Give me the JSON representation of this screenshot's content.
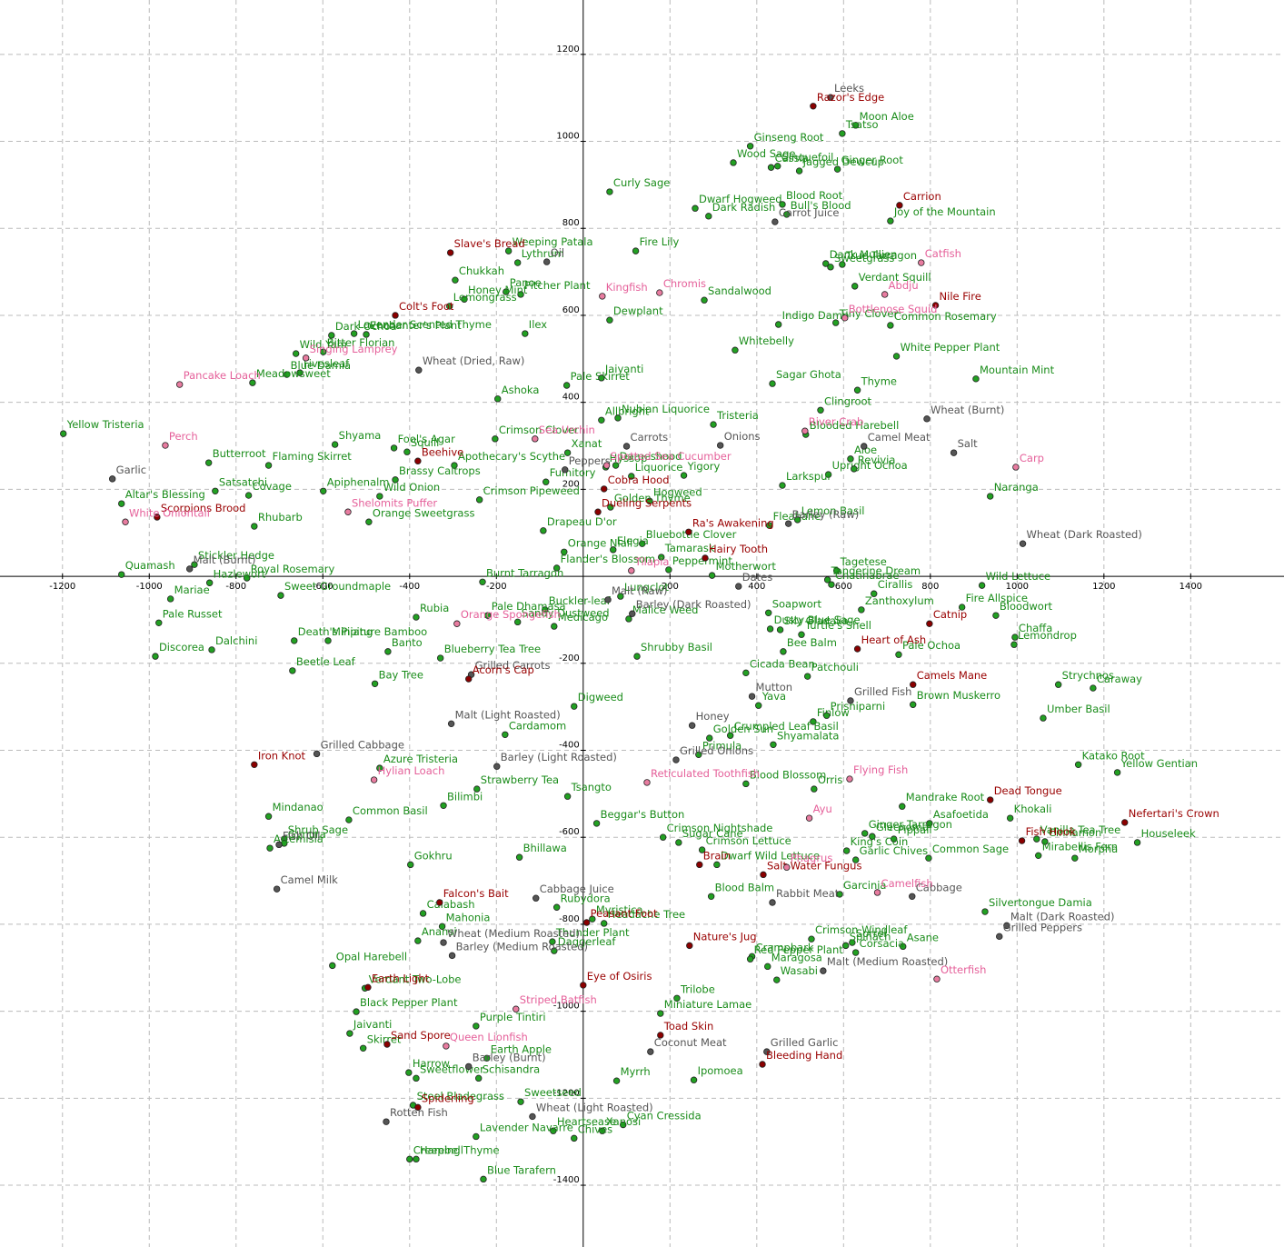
{
  "chart_data": {
    "type": "scatter",
    "xlim": [
      -1344,
      1615
    ],
    "ylim": [
      -1542,
      1325
    ],
    "xticks": [
      -1200,
      -1000,
      -800,
      -600,
      -400,
      -200,
      200,
      400,
      600,
      800,
      1000,
      1200,
      1400
    ],
    "yticks": [
      1200,
      1000,
      800,
      600,
      400,
      200,
      -200,
      -400,
      -600,
      -800,
      -1000,
      -1200,
      -1400
    ],
    "grid": true,
    "series": [
      {
        "color": "#22a022",
        "text_color": "#1a8c1a",
        "labels": [
          "Moon Aloe",
          "Tsatso",
          "Ginseng Root",
          "Wood Sage",
          "Cinquefoil",
          "Cassia",
          "Ginger Root",
          "Jagged Dewcup",
          "Curly Sage",
          "Dwarf Hogweed",
          "Blood Root",
          "Dark Radish",
          "Bull's Blood",
          "Joy of the Mountain",
          "Weeping Patala",
          "Lythrum",
          "Fire Lily",
          "Dank Mullien",
          "True Tarragon",
          "Sweetgrass",
          "Chukkah",
          "Panoe",
          "Pitcher Plant",
          "Verdant Squill",
          "Sandalwood",
          "Honey Mint",
          "Lemongrass",
          "Dewplant",
          "Indigo Damp",
          "Tiny Clover",
          "Common Rosemary",
          "Dark Ochoa",
          "Lavender Scented Thyme",
          "Enchanter's Plant",
          "Ilex",
          "Whitebelly",
          "Bitter Florian",
          "Wild Yam",
          "White Pepper Plant",
          "Blue Damia",
          "Fivesleaf",
          "Meadowsweet",
          "Mountain Mint",
          "Pale Skirret",
          "Jaiyanti",
          "Sagar Ghota",
          "Thyme",
          "Ashoka",
          "Clingroot",
          "Allbright",
          "Nubian Liquorice",
          "Tristeria",
          "Yellow Tristeria",
          "Crimson Clover",
          "Blooded Harebell",
          "Shyama",
          "Fool's Agar",
          "Xanat",
          "Butterroot",
          "Flaming Skirret",
          "Squill",
          "Apothecary's Scythe",
          "Aloe",
          "Dameshood",
          "Hyssop",
          "Liquorice",
          "Yigory",
          "Upright Ochoa",
          "Revivia",
          "Apiphenalm",
          "Brassy Caltrops",
          "Satsatchi",
          "Fumitory",
          "Crimson Pipeweed",
          "Larkspur",
          "Naranga",
          "Altar's Blessing",
          "Covage",
          "Wild Onion",
          "Golden Thyme",
          "Hogweed",
          "Orange Sweetgrass",
          "Fleabane",
          "Lemon Basil",
          "Rhubarb",
          "Drapeau D'or",
          "Bluebottle Clover",
          "Elegia",
          "Orange Niali",
          "Tamarask",
          "Stickler Hedge",
          "Flander's Blossom",
          "Peppermint",
          "Tagetese",
          "Royal Rosemary",
          "Quamash",
          "Burnt Tarragon",
          "Motherwort",
          "Tangerine Dream",
          "Wild Lettuce",
          "Hazlewort",
          "Lungclot",
          "Chatinabrae",
          "Sweet Groundmaple",
          "Mariae",
          "Buckler-leaf",
          "Zanthoxylum",
          "Fire Allspice",
          "Cirallis",
          "Bloodwort",
          "Rubia",
          "Pale Dhamasa",
          "Sandy Dustweed",
          "Soapwort",
          "Dusty Blue Sage",
          "Malice Weed",
          "Medicago",
          "Pale Russet",
          "Sky Gladalia",
          "Chaffa",
          "Lemondrop",
          "Miniature Bamboo",
          "Dalchini",
          "Death's Piping",
          "Turtle's Shell",
          "Shrubby Basil",
          "Bee Balm",
          "Pale Ochoa",
          "Blueberry Tea Tree",
          "Banto",
          "Discorea",
          "Beetle Leaf",
          "Patchouli",
          "Cicada Bean",
          "Strychnos",
          "Caraway",
          "Bay Tree",
          "Yava",
          "Digweed",
          "Brown Muskerro",
          "Umber Basil",
          "Finlow",
          "Prisniparni",
          "Cardamom",
          "Crumpled Leaf Basil",
          "Golden Sun",
          "Shyamalata",
          "Primula",
          "Katako Root",
          "Azure Tristeria",
          "Yellow Gentian",
          "Blood Blossom",
          "Orris",
          "Strawberry Tea",
          "Tsangto",
          "Mandrake Root",
          "Bilimbi",
          "Khokali",
          "Mindanao",
          "Asafoetida",
          "Common Basil",
          "Beggar's Button",
          "Ginger Tarragon",
          "Glechoma",
          "Vanilla Tea Tree",
          "Cinnamon",
          "Houseleek",
          "Crimson Nightshade",
          "Pippali",
          "Shrub Sage",
          "Gynura",
          "Artemisia",
          "Sugar Cane",
          "Crimson Lettuce",
          "King's Coin",
          "Mirabellis Fern",
          "Common Sage",
          "Garlic Chives",
          "Gokhru",
          "Bhillawa",
          "Dwarf Wild Lettuce",
          "Morpha",
          "Garcinia",
          "Blood Balm",
          "Rubydora",
          "Silvertongue Damia",
          "Calabash",
          "Myristica",
          "Mahonia",
          "Headache Tree",
          "Anansi",
          "Crimson Windleaf",
          "Sorrel",
          "Thunder Plant",
          "Asane",
          "Spinach",
          "Crampbark",
          "Daggerleaf",
          "Corsacia",
          "Red Pepper Plant",
          "Opal Harebell",
          "Maragosa",
          "Wasabi",
          "Verdant Two-Lobe",
          "Black Pepper Plant",
          "Trilobe",
          "Miniature Lamae",
          "Purple Tintiri",
          "Jaivanti",
          "Skirret",
          "Earth Apple",
          "Harrow",
          "Schisandra",
          "Myrrh",
          "Ipomoea",
          "Sweetflower",
          "Sweetseed",
          "Steel Bladegrass",
          "Cyan Cressida",
          "Heartsease",
          "Xanosi",
          "Lavender Navarre",
          "Chives",
          "Creeping Thyme",
          "Harebell",
          "Blue Tarafern"
        ],
        "x": [
          628,
          597,
          385,
          346,
          448,
          433,
          586,
          498,
          61,
          258,
          459,
          289,
          469,
          708,
          -172,
          -151,
          121,
          559,
          597,
          570,
          -295,
          -178,
          -144,
          626,
          279,
          -274,
          -308,
          61,
          450,
          582,
          708,
          -580,
          -528,
          -500,
          -134,
          350,
          -599,
          -662,
          722,
          -683,
          -653,
          -762,
          905,
          -38,
          42,
          436,
          632,
          -197,
          547,
          42,
          80,
          300,
          -1198,
          -203,
          513,
          -572,
          -436,
          -36,
          -863,
          -725,
          -406,
          -297,
          616,
          75,
          52,
          111,
          232,
          565,
          624,
          -599,
          -433,
          -848,
          -86,
          -239,
          459,
          938,
          -1064,
          -771,
          -469,
          63,
          153,
          -494,
          429,
          494,
          -758,
          -92,
          136,
          69,
          -44,
          180,
          -896,
          -61,
          197,
          584,
          -775,
          -1064,
          -232,
          297,
          563,
          919,
          -861,
          86,
          572,
          -697,
          -951,
          -88,
          641,
          873,
          670,
          951,
          -385,
          -220,
          -151,
          427,
          431,
          105,
          -67,
          -978,
          454,
          995,
          993,
          -588,
          -856,
          -666,
          503,
          124,
          461,
          727,
          -329,
          -450,
          -986,
          -670,
          517,
          375,
          1095,
          1175,
          -480,
          404,
          -21,
          760,
          1060,
          530,
          561,
          -180,
          339,
          291,
          438,
          266,
          1141,
          -469,
          1231,
          375,
          532,
          -245,
          -36,
          735,
          -322,
          984,
          -725,
          798,
          -540,
          31,
          649,
          666,
          1045,
          1064,
          1277,
          184,
          716,
          -689,
          -689,
          -722,
          220,
          274,
          607,
          1049,
          796,
          628,
          -398,
          -147,
          308,
          1133,
          591,
          295,
          -61,
          926,
          -369,
          21,
          -325,
          48,
          -381,
          526,
          620,
          -71,
          737,
          605,
          389,
          -67,
          628,
          385,
          -578,
          425,
          446,
          -503,
          -523,
          216,
          178,
          -247,
          -538,
          -507,
          -222,
          -402,
          -241,
          77,
          255,
          -385,
          -144,
          -392,
          92,
          -69,
          44,
          -247,
          -21,
          -400,
          -385,
          -230
        ],
        "y": [
          1037,
          1018,
          989,
          951,
          943,
          940,
          936,
          932,
          884,
          846,
          855,
          828,
          832,
          817,
          748,
          721,
          748,
          719,
          717,
          711,
          681,
          654,
          648,
          667,
          635,
          637,
          621,
          589,
          579,
          583,
          577,
          554,
          558,
          556,
          558,
          520,
          516,
          512,
          506,
          464,
          468,
          445,
          454,
          439,
          456,
          443,
          428,
          408,
          382,
          359,
          364,
          349,
          328,
          316,
          326,
          303,
          295,
          284,
          261,
          255,
          286,
          255,
          270,
          255,
          251,
          230,
          232,
          234,
          247,
          196,
          222,
          196,
          217,
          176,
          209,
          184,
          167,
          186,
          184,
          159,
          173,
          125,
          117,
          130,
          115,
          105,
          75,
          61,
          56,
          44,
          27,
          19,
          15,
          13,
          -4,
          4,
          -13,
          2,
          -8,
          -21,
          -15,
          -46,
          -19,
          -44,
          -52,
          -77,
          -77,
          -71,
          -40,
          -90,
          -94,
          -90,
          -105,
          -84,
          -121,
          -98,
          -115,
          -107,
          -123,
          -140,
          -157,
          -148,
          -169,
          -148,
          -134,
          -184,
          -173,
          -180,
          -188,
          -173,
          -184,
          -217,
          -230,
          -222,
          -249,
          -257,
          -247,
          -297,
          -299,
          -295,
          -326,
          -334,
          -320,
          -364,
          -366,
          -372,
          -387,
          -410,
          -433,
          -441,
          -451,
          -477,
          -489,
          -489,
          -506,
          -529,
          -527,
          -556,
          -552,
          -568,
          -560,
          -568,
          -591,
          -598,
          -604,
          -610,
          -612,
          -600,
          -604,
          -604,
          -614,
          -625,
          -612,
          -629,
          -631,
          -642,
          -648,
          -652,
          -663,
          -646,
          -663,
          -648,
          -731,
          -736,
          -761,
          -771,
          -775,
          -788,
          -805,
          -798,
          -838,
          -834,
          -842,
          -840,
          -851,
          -849,
          -874,
          -861,
          -865,
          -880,
          -895,
          -897,
          -928,
          -947,
          -1001,
          -970,
          -1005,
          -1034,
          -1051,
          -1085,
          -1108,
          -1141,
          -1154,
          -1160,
          -1158,
          -1154,
          -1208,
          -1216,
          -1261,
          -1275,
          -1275,
          -1288,
          -1292,
          -1340,
          -1340,
          -1386
        ]
      },
      {
        "color": "#555555",
        "text_color": "#555555",
        "labels": [
          "Leeks",
          "Carrot Juice",
          "Oil",
          "Wheat (Dried, Raw)",
          "Wheat (Burnt)",
          "Carrots",
          "Onions",
          "Camel Meat",
          "Salt",
          "Garlic",
          "Peppers",
          "Barley (Raw)",
          "Wheat (Dark Roasted)",
          "Malt (Burnt)",
          "Dates",
          "Malt (Raw)",
          "Barley (Dark Roasted)",
          "Grilled Carrots",
          "Grilled Fish",
          "Mutton",
          "Malt (Light Roasted)",
          "Honey",
          "Grilled Cabbage",
          "Grilled Onions",
          "Barley (Light Roasted)",
          "Fish Oil",
          "Camel Milk",
          "Cabbage",
          "Rabbit Meat",
          "Cabbage Juice",
          "Malt (Dark Roasted)",
          "Wheat (Medium Roasted)",
          "Grilled Peppers",
          "Barley (Medium Roasted)",
          "Malt (Medium Roasted)",
          "Grilled Garlic",
          "Coconut Meat",
          "Barley (Burnt)",
          "Wheat (Light Roasted)",
          "Rotten Fish"
        ],
        "x": [
          570,
          442,
          -84,
          -379,
          792,
          100,
          316,
          647,
          854,
          -1085,
          -42,
          473,
          1013,
          -907,
          358,
          57,
          113,
          -258,
          616,
          389,
          -304,
          251,
          -614,
          214,
          -199,
          -701,
          -706,
          758,
          436,
          -109,
          976,
          -322,
          959,
          -302,
          553,
          423,
          155,
          -264,
          -117,
          -454
        ],
        "y": [
          1101,
          815,
          723,
          474,
          362,
          299,
          301,
          299,
          284,
          224,
          245,
          121,
          75,
          17,
          -23,
          -54,
          -86,
          -226,
          -286,
          -276,
          -339,
          -343,
          -408,
          -422,
          -437,
          -617,
          -719,
          -736,
          -750,
          -740,
          -803,
          -842,
          -828,
          -872,
          -907,
          -1093,
          -1093,
          -1127,
          -1242,
          -1254
        ]
      },
      {
        "color": "#8b0000",
        "text_color": "#990000",
        "labels": [
          "Razor's Edge",
          "Carrion",
          "Slave's Bread",
          "Nile Fire",
          "Colt's Foot",
          "Beehive",
          "Cobra Hood",
          "Scorpions Brood",
          "Dueling Serpents",
          "Ra's Awakening",
          "Hairy Tooth",
          "Catnip",
          "Heart of Ash",
          "Acorn's Cap",
          "Camels Mane",
          "Iron Knot",
          "Dead Tongue",
          "Nefertari's Crown",
          "Fish Hook",
          "Brain",
          "Salt Water Fungus",
          "Falcon's Bait",
          "Peasant Foot",
          "Nature's Jug",
          "Earth Light",
          "Eye of Osiris",
          "Toad Skin",
          "Sand Spore",
          "Bleeding Hand",
          "Spiderling"
        ],
        "x": [
          530,
          729,
          -306,
          812,
          -433,
          -381,
          48,
          -982,
          34,
          243,
          281,
          798,
          632,
          -264,
          760,
          -758,
          938,
          1248,
          1011,
          268,
          415,
          -331,
          8,
          245,
          -496,
          0,
          178,
          -452,
          413,
          -381
        ],
        "y": [
          1081,
          853,
          744,
          623,
          600,
          265,
          201,
          136,
          148,
          102,
          42,
          -109,
          -167,
          -236,
          -249,
          -433,
          -514,
          -566,
          -608,
          -663,
          -686,
          -750,
          -796,
          -849,
          -945,
          -940,
          -1055,
          -1076,
          -1122,
          -1221
        ]
      },
      {
        "color": "#e87ca0",
        "text_color": "#e5609a",
        "labels": [
          "Catfish",
          "Kingfish",
          "Chromis",
          "Abdju",
          "Bottlenose Squid",
          "Singing Lamprey",
          "Pancake Loach",
          "Sea Urchin",
          "River Crab",
          "Perch",
          "Spotted Sea Cucumber",
          "Carp",
          "Shelomits Puffer",
          "White Oniontail",
          "Tilapia",
          "Orange Spongefish",
          "Reticulated Toothfish",
          "Flying Fish",
          "Hylian Loach",
          "Ayu",
          "Phagrus",
          "Camelfish",
          "Otterfish",
          "Striped Batfish",
          "Queen Lionfish"
        ],
        "x": [
          779,
          44,
          176,
          695,
          603,
          -639,
          -930,
          -111,
          511,
          -963,
          54,
          997,
          -542,
          -1055,
          111,
          -291,
          147,
          614,
          -482,
          521,
          469,
          678,
          815,
          -155,
          -316
        ],
        "y": [
          721,
          644,
          652,
          648,
          594,
          502,
          441,
          316,
          334,
          301,
          255,
          251,
          148,
          125,
          13,
          -109,
          -474,
          -466,
          -468,
          -556,
          -669,
          -727,
          -926,
          -995,
          -1080
        ]
      }
    ]
  }
}
